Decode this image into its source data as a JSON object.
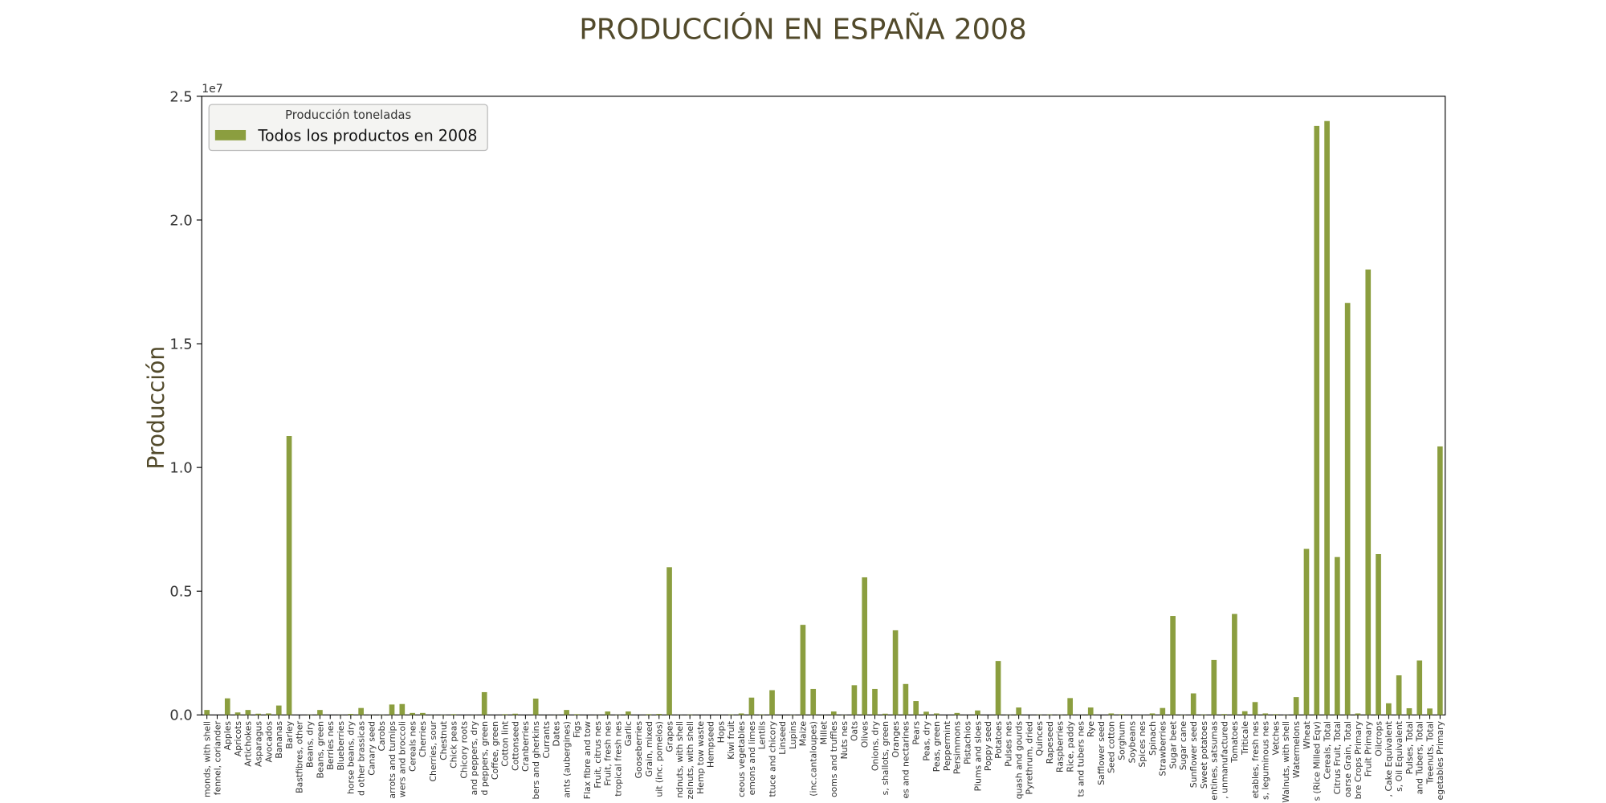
{
  "chart_data": {
    "type": "bar",
    "title": "PRODUCCIÓN EN ESPAÑA 2008",
    "y_label": "Producción",
    "y_offset_label": "1e7",
    "legend_title": "Producción toneladas",
    "legend": "upper left",
    "grid": false,
    "categories": [
      "monds, with shell",
      "fennel, coriander",
      "Apples",
      "Apricots",
      "Artichokes",
      "Asparagus",
      "Avocados",
      "Bananas",
      "Barley",
      "Bastfibres, other",
      "Beans, dry",
      "Beans, green",
      "Berries nes",
      "Blueberries",
      "horse beans, dry",
      "d other brassicas",
      "Canary seed",
      "Carobs",
      "arrots and turnips",
      "wers and broccoli",
      "Cereals nes",
      "Cherries",
      "Cherries, sour",
      "Chestnut",
      "Chick peas",
      "Chicory roots",
      "and peppers, dry",
      "d peppers, green",
      "Coffee, green",
      "Cotton lint",
      "Cottonseed",
      "Cranberries",
      "bers and gherkins",
      "Currants",
      "Dates",
      "ants (aubergines)",
      "Figs",
      "Flax fibre and tow",
      "Fruit, citrus nes",
      "Fruit, fresh nes",
      "tropical fresh nes",
      "Garlic",
      "Gooseberries",
      "Grain, mixed",
      "uit (inc. pomelos)",
      "Grapes",
      "ndnuts, with shell",
      "zelnuts, with shell",
      "Hemp tow waste",
      "Hempseed",
      "Hops",
      "Kiwi fruit",
      "ceous vegetables",
      "emons and limes",
      "Lentils",
      "ttuce and chicory",
      "Linseed",
      "Lupins",
      "Maize",
      "(inc.cantaloupes)",
      "Millet",
      "ooms and truffles",
      "Nuts nes",
      "Oats",
      "Olives",
      "Onions, dry",
      "s, shallots, green",
      "Oranges",
      "es and nectarines",
      "Pears",
      "Peas, dry",
      "Peas, green",
      "Peppermint",
      "Persimmons",
      "Pistachios",
      "Plums and sloes",
      "Poppy seed",
      "Potatoes",
      "Pulses nes",
      "quash and gourds",
      "Pyrethrum, dried",
      "Quinces",
      "Rapeseed",
      "Raspberries",
      "Rice, paddy",
      "ts and tubers nes",
      "Rye",
      "Safflower seed",
      "Seed cotton",
      "Sorghum",
      "Soybeans",
      "Spices nes",
      "Spinach",
      "Strawberries",
      "Sugar beet",
      "Sugar cane",
      "Sunflower seed",
      "Sweet potatoes",
      "entines, satsumas",
      ", unmanufactured",
      "Tomatoes",
      "Triticale",
      "etables, fresh nes",
      "s, leguminous nes",
      "Vetches",
      "Walnuts, with shell",
      "Watermelons",
      "Wheat",
      "s (Rice Milled Eqv)",
      "Cereals, Total",
      "Citrus Fruit, Total",
      "oarse Grain, Total",
      "bre Crops Primary",
      "Fruit Primary",
      "Oilcrops",
      ", Cake Equivalent",
      "s, Oil Equivalent",
      "Pulses, Total",
      "and Tubers, Total",
      "Treenuts, Total",
      "egetables Primary"
    ],
    "series": [
      {
        "name": "Todos los productos en 2008",
        "color": "#8b9e3f",
        "values": [
          200000,
          0,
          670000,
          100000,
          200000,
          50000,
          60000,
          380000,
          11270000,
          0,
          10000,
          200000,
          0,
          5000,
          40000,
          280000,
          5000,
          10000,
          420000,
          440000,
          80000,
          80000,
          5000,
          10000,
          30000,
          0,
          5000,
          920000,
          0,
          30000,
          50000,
          0,
          660000,
          2000,
          5000,
          200000,
          30000,
          1000,
          5000,
          140000,
          10000,
          140000,
          0,
          30000,
          40000,
          5970000,
          5000,
          15000,
          0,
          0,
          3000,
          20000,
          60000,
          700000,
          20000,
          1000000,
          1000,
          10000,
          3640000,
          1050000,
          5000,
          140000,
          10000,
          1200000,
          5560000,
          1050000,
          50000,
          3420000,
          1250000,
          560000,
          130000,
          60000,
          0,
          80000,
          2000,
          180000,
          0,
          2180000,
          10000,
          300000,
          0,
          15000,
          20000,
          10000,
          680000,
          5000,
          300000,
          0,
          60000,
          30000,
          2000,
          5000,
          60000,
          280000,
          4000000,
          10000,
          870000,
          20000,
          2220000,
          35000,
          4080000,
          150000,
          520000,
          60000,
          30000,
          10000,
          720000,
          6710000,
          23800000,
          24000000,
          6380000,
          16650000,
          60000,
          18000000,
          6500000,
          470000,
          1600000,
          270000,
          2200000,
          260000,
          10850000
        ]
      }
    ],
    "ylim": [
      0,
      25000000
    ],
    "yticks": [
      {
        "value": 0,
        "label": "0.0"
      },
      {
        "value": 5000000,
        "label": "0.5"
      },
      {
        "value": 10000000,
        "label": "1.0"
      },
      {
        "value": 15000000,
        "label": "1.5"
      },
      {
        "value": 20000000,
        "label": "2.0"
      },
      {
        "value": 25000000,
        "label": "2.5"
      }
    ]
  }
}
